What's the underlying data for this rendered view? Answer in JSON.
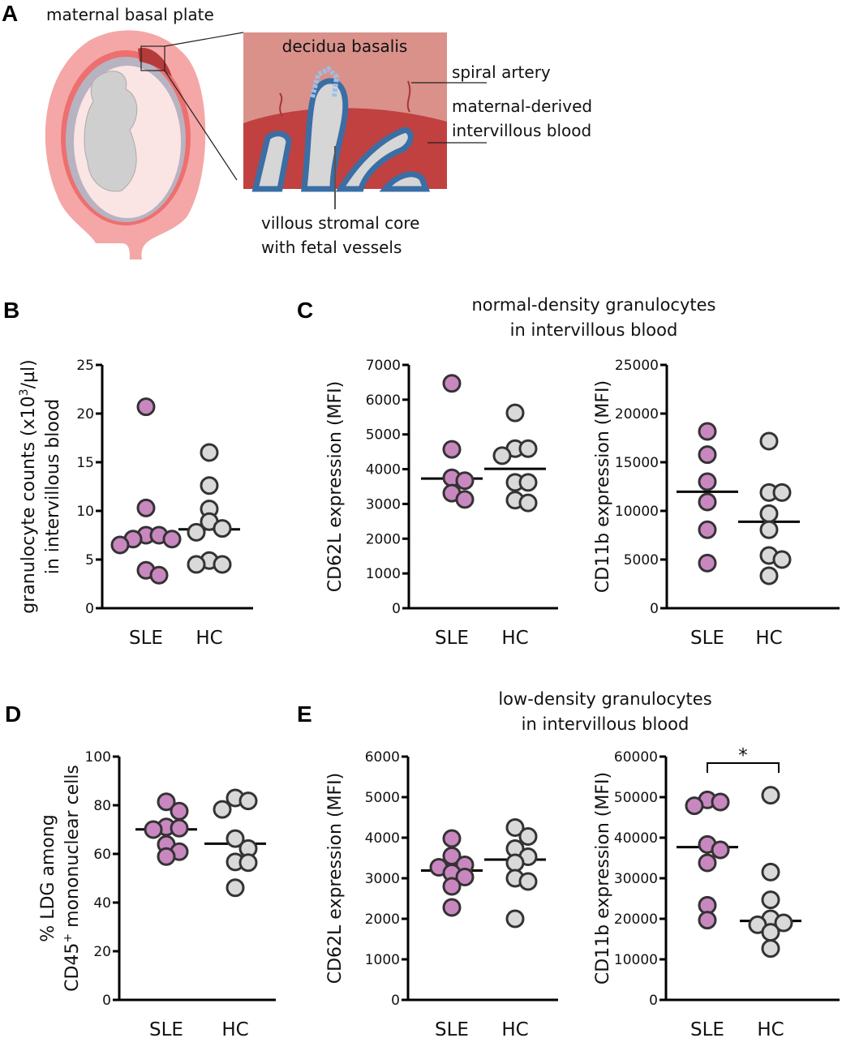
{
  "panel_letters": {
    "a": "A",
    "b": "B",
    "c": "C",
    "d": "D",
    "e": "E"
  },
  "illustration": {
    "maternal_basal_plate": "maternal basal plate",
    "decidua_basalis": "decidua basalis",
    "spiral_artery": "spiral artery",
    "maternal_derived": "maternal-derived",
    "intervillous_blood": "intervillous blood",
    "villous_core_1": "villous stromal core",
    "villous_core_2": "with fetal vessels",
    "colors": {
      "uterus": "#f4a7a6",
      "decidua": "#d9918a",
      "blood": "#c0413f",
      "villi": "#3a6ea5",
      "stroma": "#d6d6d6"
    }
  },
  "titles": {
    "c_line1": "normal-density granulocytes",
    "c_line2": "in intervillous blood",
    "e_line1": "low-density granulocytes",
    "e_line2": "in intervillous blood"
  },
  "colors": {
    "SLE": "#c987c0",
    "HC": "#d9d9d9",
    "outline": "#333333"
  },
  "chart_data": [
    {
      "panel": "B",
      "type": "scatter",
      "ylabel_parts": [
        "granulocyte counts (x10",
        "3",
        "/µl)"
      ],
      "ylabel_line2": "in intervillous blood",
      "categories": [
        "SLE",
        "HC"
      ],
      "ylim": [
        0,
        25
      ],
      "yticks": [
        "0",
        "5",
        "10",
        "15",
        "20",
        "25"
      ],
      "series": [
        {
          "name": "SLE",
          "values": [
            20.7,
            10.3,
            7.1,
            6.5,
            7.1,
            7.5,
            7.5,
            3.9,
            3.4
          ],
          "median": 7.0
        },
        {
          "name": "HC",
          "values": [
            16.0,
            12.6,
            10.2,
            8.9,
            8.2,
            7.8,
            4.9,
            4.5,
            4.5
          ],
          "median": 8.1
        }
      ]
    },
    {
      "panel": "C-left",
      "type": "scatter",
      "ylabel": "CD62L expression (MFI)",
      "categories": [
        "SLE",
        "HC"
      ],
      "ylim": [
        0,
        7000
      ],
      "yticks": [
        "0",
        "1000",
        "2000",
        "3000",
        "4000",
        "5000",
        "6000",
        "7000"
      ],
      "series": [
        {
          "name": "SLE",
          "values": [
            6470,
            4570,
            3750,
            3670,
            3310,
            3130
          ],
          "median": 3730
        },
        {
          "name": "HC",
          "values": [
            5620,
            4390,
            4590,
            4590,
            3620,
            3620,
            3110,
            3030
          ],
          "median": 4010
        }
      ]
    },
    {
      "panel": "C-right",
      "type": "scatter",
      "ylabel": "CD11b expression (MFI)",
      "categories": [
        "SLE",
        "HC"
      ],
      "ylim": [
        0,
        25000
      ],
      "yticks": [
        "0",
        "5000",
        "10000",
        "15000",
        "20000",
        "25000"
      ],
      "series": [
        {
          "name": "SLE",
          "values": [
            18170,
            15780,
            13000,
            10920,
            8060,
            4640
          ],
          "median": 11970
        },
        {
          "name": "HC",
          "values": [
            17170,
            11890,
            11890,
            9720,
            8060,
            5420,
            5000,
            3330
          ],
          "median": 8890
        }
      ]
    },
    {
      "panel": "D",
      "type": "scatter",
      "ylabel": "% LDG among",
      "ylabel_line2_parts": [
        "CD45",
        "+",
        " mononuclear cells"
      ],
      "categories": [
        "SLE",
        "HC"
      ],
      "ylim": [
        0,
        100
      ],
      "yticks": [
        "0",
        "20",
        "40",
        "60",
        "80",
        "100"
      ],
      "series": [
        {
          "name": "SLE",
          "values": [
            81.4,
            77.6,
            70.6,
            70.0,
            71.1,
            63.9,
            60.9,
            58.9
          ],
          "median": 70.1
        },
        {
          "name": "HC",
          "values": [
            78.3,
            83.0,
            81.8,
            66.3,
            62.2,
            56.7,
            56.4,
            46.1
          ],
          "median": 64.2
        }
      ]
    },
    {
      "panel": "E-left",
      "type": "scatter",
      "ylabel": "CD62L expression (MFI)",
      "categories": [
        "SLE",
        "HC"
      ],
      "ylim": [
        0,
        6000
      ],
      "yticks": [
        "0",
        "1000",
        "2000",
        "3000",
        "4000",
        "5000",
        "6000"
      ],
      "series": [
        {
          "name": "SLE",
          "values": [
            3980,
            3550,
            3330,
            3270,
            3130,
            3030,
            2800,
            2280
          ],
          "median": 3190
        },
        {
          "name": "HC",
          "values": [
            4250,
            4030,
            3730,
            3530,
            3380,
            3000,
            2920,
            2000
          ],
          "median": 3460
        }
      ]
    },
    {
      "panel": "E-right",
      "type": "scatter",
      "ylabel": "CD11b expression (MFI)",
      "categories": [
        "SLE",
        "HC"
      ],
      "ylim": [
        0,
        60000
      ],
      "yticks": [
        "0",
        "10000",
        "20000",
        "30000",
        "40000",
        "50000",
        "60000"
      ],
      "significance": "*",
      "series": [
        {
          "name": "SLE",
          "values": [
            47870,
            49330,
            48800,
            38330,
            37000,
            33800,
            23330,
            19670
          ],
          "median": 37670
        },
        {
          "name": "HC",
          "values": [
            50470,
            31530,
            24670,
            20000,
            19000,
            18530,
            16670,
            12670
          ],
          "median": 19470
        }
      ]
    }
  ]
}
